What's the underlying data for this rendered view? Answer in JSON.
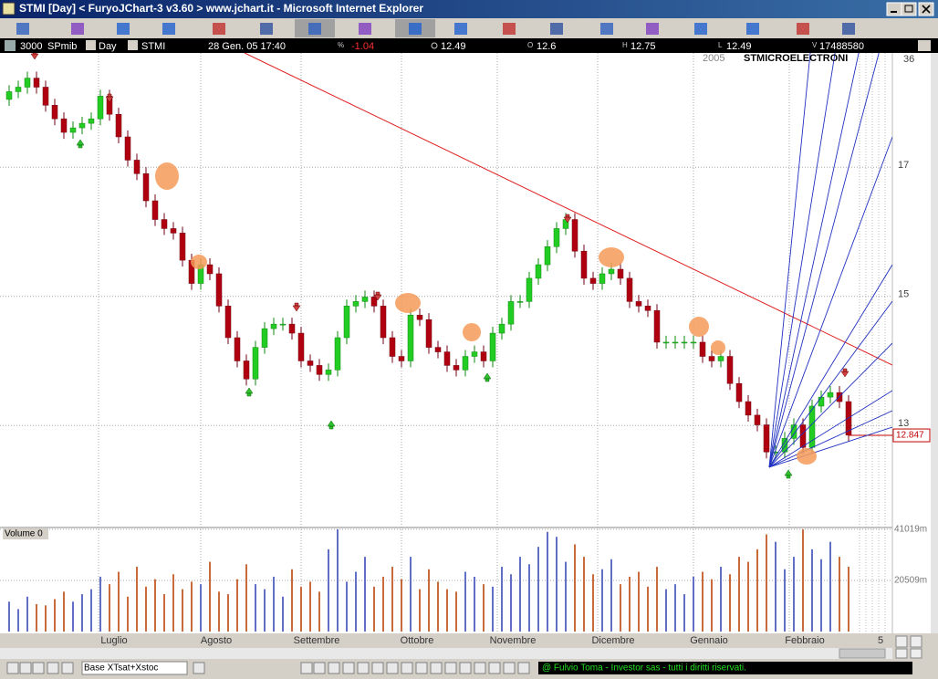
{
  "window": {
    "title": "STMI [Day] < FuryoJChart-3 v3.60 > www.jchart.it - Microsoft Internet Explorer"
  },
  "info_bar": {
    "count": "3000",
    "index": "SPmib",
    "period": "Day",
    "symbol": "STMI",
    "datetime": "28 Gen. 05  17:40",
    "change_label": "%",
    "change": "-1.04",
    "close": "12.49",
    "open_label": "O",
    "open": "12.6",
    "high_label": "H",
    "high": "12.75",
    "low_label": "L",
    "low": "12.49",
    "volume_label": "V",
    "volume": "17488580"
  },
  "chart_data": {
    "type": "candlestick",
    "title": "STMICROELECTRONI",
    "year_label": "2005",
    "corner_label": "36",
    "last_price_label": 12.847,
    "volume_title": "Volume 0",
    "date_label": "5",
    "up_color": "#22cc22",
    "down_color": "#b00010",
    "volume_up_color": "#6070c8",
    "volume_down_color": "#c86a3a",
    "xlim": [
      -0.5,
      96.5
    ],
    "xticks": [
      {
        "value": 9.8,
        "label": "Luglio"
      },
      {
        "value": 21,
        "label": "Agosto"
      },
      {
        "value": 32,
        "label": "Settembre"
      },
      {
        "value": 43,
        "label": "Ottobre"
      },
      {
        "value": 53.5,
        "label": "Novembre"
      },
      {
        "value": 64.5,
        "label": "Dicembre"
      },
      {
        "value": 75,
        "label": "Gennaio"
      },
      {
        "value": 85.5,
        "label": "Febbraio"
      }
    ],
    "ylim": [
      11.42,
      18.77
    ],
    "yticks": [
      13,
      15,
      17
    ],
    "grid": true,
    "open": [
      18.05,
      18.17,
      18.24,
      18.38,
      18.24,
      17.96,
      17.75,
      17.54,
      17.61,
      17.68,
      17.75,
      18.1,
      17.82,
      17.47,
      17.11,
      16.9,
      16.48,
      16.19,
      16.05,
      15.98,
      15.56,
      15.2,
      15.49,
      15.35,
      14.85,
      14.36,
      14.0,
      13.72,
      14.21,
      14.5,
      14.57,
      14.57,
      14.43,
      14.0,
      13.93,
      13.79,
      13.86,
      14.36,
      14.85,
      14.92,
      14.99,
      14.85,
      14.36,
      14.07,
      14.0,
      14.71,
      14.64,
      14.21,
      14.14,
      13.93,
      13.86,
      14.07,
      14.14,
      14.0,
      14.43,
      14.57,
      14.92,
      14.92,
      15.28,
      15.49,
      15.77,
      16.05,
      16.19,
      15.7,
      15.28,
      15.2,
      15.35,
      15.42,
      15.28,
      14.92,
      14.85,
      14.78,
      14.29,
      14.29,
      14.29,
      14.29,
      14.29,
      14.07,
      14.0,
      14.07,
      13.65,
      13.37,
      13.16,
      13.01,
      12.59,
      12.59,
      12.8,
      13.01,
      12.66,
      13.3,
      13.44,
      13.51,
      13.37
    ],
    "high": [
      18.27,
      18.34,
      18.48,
      18.48,
      18.34,
      18.06,
      17.85,
      17.71,
      17.78,
      17.85,
      18.2,
      18.2,
      17.92,
      17.57,
      17.21,
      17.0,
      16.58,
      16.29,
      16.15,
      16.08,
      15.66,
      15.59,
      15.59,
      15.45,
      14.95,
      14.46,
      14.1,
      14.31,
      14.6,
      14.67,
      14.67,
      14.67,
      14.53,
      14.1,
      14.03,
      13.96,
      14.46,
      14.95,
      15.02,
      15.09,
      15.09,
      14.95,
      14.46,
      14.17,
      14.81,
      14.81,
      14.74,
      14.31,
      14.24,
      14.03,
      14.17,
      14.24,
      14.24,
      14.53,
      14.67,
      15.02,
      15.02,
      15.38,
      15.59,
      15.87,
      16.15,
      16.29,
      16.29,
      15.8,
      15.38,
      15.45,
      15.52,
      15.52,
      15.38,
      15.02,
      14.95,
      14.88,
      14.39,
      14.39,
      14.39,
      14.39,
      14.39,
      14.17,
      14.17,
      14.17,
      13.75,
      13.47,
      13.26,
      13.11,
      12.69,
      12.9,
      13.11,
      13.11,
      13.4,
      13.54,
      13.61,
      13.61,
      13.47
    ],
    "low": [
      17.95,
      18.07,
      18.14,
      18.14,
      17.86,
      17.65,
      17.44,
      17.44,
      17.51,
      17.58,
      17.65,
      17.72,
      17.37,
      17.01,
      16.8,
      16.38,
      16.09,
      15.95,
      15.88,
      15.46,
      15.1,
      15.1,
      15.25,
      14.75,
      14.26,
      13.9,
      13.62,
      13.62,
      14.11,
      14.4,
      14.47,
      14.33,
      13.9,
      13.83,
      13.69,
      13.69,
      13.76,
      14.26,
      14.75,
      14.82,
      14.75,
      14.26,
      13.97,
      13.9,
      13.9,
      14.54,
      14.11,
      14.04,
      13.83,
      13.76,
      13.76,
      13.97,
      13.9,
      13.9,
      14.33,
      14.47,
      14.82,
      14.82,
      15.18,
      15.39,
      15.67,
      15.95,
      15.6,
      15.18,
      15.1,
      15.1,
      15.25,
      15.18,
      14.82,
      14.75,
      14.68,
      14.19,
      14.19,
      14.19,
      14.19,
      14.19,
      13.97,
      13.9,
      13.9,
      13.55,
      13.27,
      13.06,
      12.91,
      12.49,
      12.49,
      12.49,
      12.7,
      12.56,
      12.56,
      13.2,
      13.34,
      13.27,
      12.75
    ],
    "close": [
      18.17,
      18.24,
      18.38,
      18.24,
      17.96,
      17.75,
      17.54,
      17.61,
      17.68,
      17.75,
      18.1,
      17.82,
      17.47,
      17.11,
      16.9,
      16.48,
      16.19,
      16.05,
      15.98,
      15.56,
      15.2,
      15.49,
      15.35,
      14.85,
      14.36,
      14.0,
      13.72,
      14.21,
      14.5,
      14.57,
      14.57,
      14.43,
      14.0,
      13.93,
      13.79,
      13.86,
      14.36,
      14.85,
      14.92,
      14.99,
      14.85,
      14.36,
      14.07,
      14.0,
      14.71,
      14.64,
      14.21,
      14.14,
      13.93,
      13.86,
      14.07,
      14.14,
      14.0,
      14.43,
      14.57,
      14.92,
      14.92,
      15.28,
      15.49,
      15.77,
      16.05,
      16.19,
      15.7,
      15.28,
      15.2,
      15.35,
      15.42,
      15.28,
      14.92,
      14.85,
      14.78,
      14.29,
      14.29,
      14.29,
      14.29,
      14.29,
      14.07,
      14.0,
      14.07,
      13.65,
      13.37,
      13.16,
      13.01,
      12.59,
      12.59,
      12.8,
      13.01,
      12.66,
      13.3,
      13.44,
      13.51,
      13.37,
      12.85
    ],
    "volume": [
      12000,
      9000,
      14000,
      11000,
      10500,
      13000,
      16000,
      12000,
      15000,
      17000,
      22000,
      19000,
      24000,
      14000,
      26000,
      18000,
      21000,
      15000,
      23000,
      17000,
      20000,
      19000,
      28000,
      16000,
      15000,
      21000,
      27000,
      19000,
      17000,
      22000,
      14000,
      25000,
      18000,
      20000,
      16000,
      33000,
      41000,
      20000,
      24000,
      30000,
      18000,
      22000,
      26000,
      21000,
      30000,
      17000,
      25000,
      20000,
      17000,
      16000,
      24000,
      22000,
      19000,
      18000,
      26000,
      23000,
      30000,
      27000,
      34000,
      40000,
      38000,
      28000,
      35000,
      30000,
      23000,
      25000,
      29000,
      19000,
      22000,
      24000,
      18000,
      26000,
      17000,
      19000,
      15000,
      22000,
      24000,
      21000,
      26000,
      23000,
      30000,
      28000,
      33000,
      39000,
      36000,
      25000,
      30000,
      41000,
      33000,
      29000,
      36000,
      30000,
      26000
    ],
    "volume_lim": [
      0,
      41750
    ],
    "volume_ticks": [
      {
        "value": 20509,
        "label": "20509m"
      },
      {
        "value": 41019,
        "label": "41019m"
      }
    ]
  },
  "status_bar": {
    "base_field": "Base XTsat+Xstoc",
    "copyright": "@ Fulvio Toma - Investor sas - tutti i diritti riservati."
  }
}
